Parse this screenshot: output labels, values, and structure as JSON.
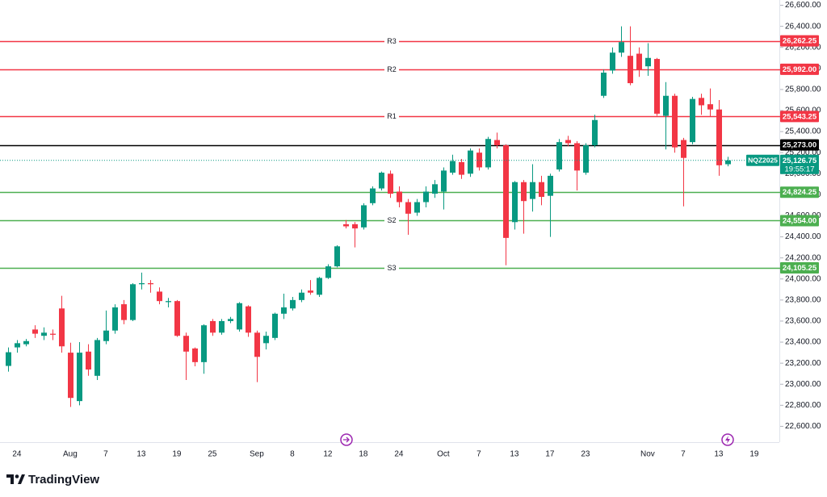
{
  "chart_data": {
    "type": "candlestick",
    "symbol": "NQZ2025",
    "last_price": {
      "value": 25126.75,
      "label": "25,126.75",
      "countdown": "19:55:17",
      "color": "#089981"
    },
    "up_color": "#089981",
    "down_color": "#f23645",
    "categories": [
      null,
      "24",
      null,
      null,
      null,
      null,
      null,
      "Aug",
      null,
      null,
      null,
      "7",
      null,
      null,
      null,
      "13",
      null,
      null,
      null,
      "19",
      null,
      null,
      null,
      "25",
      null,
      null,
      null,
      null,
      "Sep",
      null,
      null,
      null,
      "8",
      null,
      null,
      null,
      "12",
      null,
      null,
      null,
      "18",
      null,
      null,
      null,
      "24",
      null,
      null,
      null,
      null,
      "Oct",
      null,
      null,
      null,
      "7",
      null,
      null,
      null,
      "13",
      null,
      null,
      null,
      "17",
      null,
      null,
      null,
      "23",
      null,
      null,
      null,
      null,
      null,
      null,
      "Nov",
      null,
      null,
      null,
      "7",
      null,
      null,
      null,
      "13",
      null,
      null,
      null,
      "19"
    ],
    "open": [
      23174,
      23350,
      23380,
      23520,
      23460,
      23480,
      23720,
      23300,
      22840,
      23310,
      23080,
      23410,
      23510,
      23760,
      23610,
      23950,
      23960,
      23880,
      23780,
      23790,
      23460,
      23340,
      23210,
      23600,
      23490,
      23600,
      23520,
      23740,
      23490,
      23390,
      23440,
      23670,
      23720,
      23800,
      23890,
      23850,
      24010,
      24120,
      24520,
      24520,
      24490,
      24720,
      24860,
      25000,
      24830,
      24730,
      24630,
      24730,
      24810,
      24830,
      25010,
      25110,
      25000,
      25200,
      25060,
      25320,
      25270,
      24540,
      24920,
      24760,
      24920,
      24790,
      25040,
      25320,
      25290,
      25010,
      25270,
      25740,
      25980,
      26150,
      26120,
      26140,
      26020,
      26090,
      25550,
      25740,
      25320,
      25300,
      25720,
      25660,
      25610,
      25090,
      null,
      null,
      null
    ],
    "high": [
      23350,
      23420,
      23430,
      23560,
      23540,
      23520,
      23840,
      23395,
      23400,
      23380,
      23440,
      23700,
      23760,
      23800,
      23960,
      24060,
      23990,
      23920,
      23820,
      23800,
      23490,
      23350,
      23570,
      23620,
      23620,
      23640,
      23780,
      23750,
      23510,
      23500,
      23680,
      23860,
      23830,
      23900,
      23990,
      24020,
      24140,
      24320,
      24560,
      24540,
      24720,
      24880,
      25020,
      25030,
      24880,
      24760,
      24760,
      24880,
      24940,
      25060,
      25180,
      25140,
      25240,
      25240,
      25350,
      25390,
      25280,
      24930,
      24940,
      25090,
      24980,
      25000,
      25330,
      25360,
      25310,
      25290,
      25560,
      25990,
      26200,
      26400,
      26400,
      26200,
      26240,
      26100,
      25870,
      25760,
      25340,
      25730,
      25760,
      25810,
      25700,
      25160,
      null,
      null,
      null
    ],
    "low": [
      23120,
      23300,
      23360,
      23440,
      23420,
      23420,
      23300,
      22784,
      22800,
      23080,
      23040,
      23380,
      23480,
      23570,
      23600,
      23900,
      23870,
      23760,
      23730,
      23450,
      23040,
      23170,
      23100,
      23460,
      23470,
      23580,
      23500,
      23450,
      23020,
      23330,
      23420,
      23620,
      23700,
      23780,
      23850,
      23830,
      24000,
      24110,
      24480,
      24300,
      24470,
      24700,
      24840,
      24770,
      24680,
      24420,
      24600,
      24680,
      24770,
      24660,
      24990,
      24950,
      24970,
      25030,
      25040,
      25240,
      24130,
      24470,
      24430,
      24640,
      24700,
      24400,
      25020,
      25260,
      24840,
      24990,
      25250,
      25720,
      25950,
      26110,
      25840,
      25920,
      25930,
      25550,
      25230,
      25200,
      24690,
      25280,
      25560,
      25540,
      24980,
      25070,
      null,
      null,
      null
    ],
    "close": [
      23304,
      23390,
      23410,
      23480,
      23490,
      23470,
      23360,
      22870,
      23300,
      23140,
      23420,
      23510,
      23730,
      23610,
      23950,
      23960,
      23950,
      23790,
      23790,
      23460,
      23310,
      23210,
      23560,
      23490,
      23600,
      23620,
      23770,
      23490,
      23260,
      23460,
      23670,
      23730,
      23800,
      23870,
      23870,
      24010,
      24120,
      24310,
      24500,
      24480,
      24700,
      24860,
      25010,
      24810,
      24730,
      24620,
      24730,
      24830,
      24900,
      25030,
      25120,
      24990,
      25220,
      25060,
      25330,
      25270,
      24390,
      24920,
      24740,
      24920,
      24780,
      24980,
      25300,
      25290,
      25030,
      25270,
      25510,
      25960,
      26150,
      26250,
      25860,
      25990,
      26100,
      25570,
      25740,
      25250,
      25150,
      25710,
      25650,
      25610,
      25080,
      25126.75,
      null,
      null,
      null
    ],
    "levels": [
      {
        "name": "R3",
        "value": 26262.25,
        "label": "26,262.25",
        "color": "#f23645"
      },
      {
        "name": "R2",
        "value": 25992,
        "label": "25,992.00",
        "color": "#f23645"
      },
      {
        "name": "R1",
        "value": 25543.25,
        "label": "25,543.25",
        "color": "#f23645"
      },
      {
        "value": 25273,
        "label": "25,273.00",
        "color": "#000000"
      },
      {
        "value": 24824.25,
        "label": "24,824.25",
        "color": "#4caf50"
      },
      {
        "name": "S2",
        "value": 24554,
        "label": "24,554.00",
        "color": "#4caf50"
      },
      {
        "name": "S3",
        "value": 24105.25,
        "label": "24,105.25",
        "color": "#4caf50"
      }
    ],
    "ylim": [
      22450,
      26650
    ],
    "yticks": [
      {
        "value": 22600,
        "label": "22,600.00"
      },
      {
        "value": 22800,
        "label": "22,800.00"
      },
      {
        "value": 23000,
        "label": "23,000.00"
      },
      {
        "value": 23200,
        "label": "23,200.00"
      },
      {
        "value": 23400,
        "label": "23,400.00"
      },
      {
        "value": 23600,
        "label": "23,600.00"
      },
      {
        "value": 23800,
        "label": "23,800.00"
      },
      {
        "value": 24000,
        "label": "24,000.00"
      },
      {
        "value": 24200,
        "label": "24,200.00"
      },
      {
        "value": 24400,
        "label": "24,400.00"
      },
      {
        "value": 24600,
        "label": "24,600.00"
      },
      {
        "value": 24800,
        "label": "24,800.00"
      },
      {
        "value": 25000,
        "label": "25,000.00"
      },
      {
        "value": 25200,
        "label": "25,200.00"
      },
      {
        "value": 25400,
        "label": "25,400.00"
      },
      {
        "value": 25600,
        "label": "25,600.00"
      },
      {
        "value": 25800,
        "label": "25,800.00"
      },
      {
        "value": 26000,
        "label": "26,000.00"
      },
      {
        "value": 26200,
        "label": "26,200.00"
      },
      {
        "value": 26400,
        "label": "26,400.00"
      },
      {
        "value": 26600,
        "label": "26,600.00"
      }
    ]
  },
  "brand": "TradingView"
}
